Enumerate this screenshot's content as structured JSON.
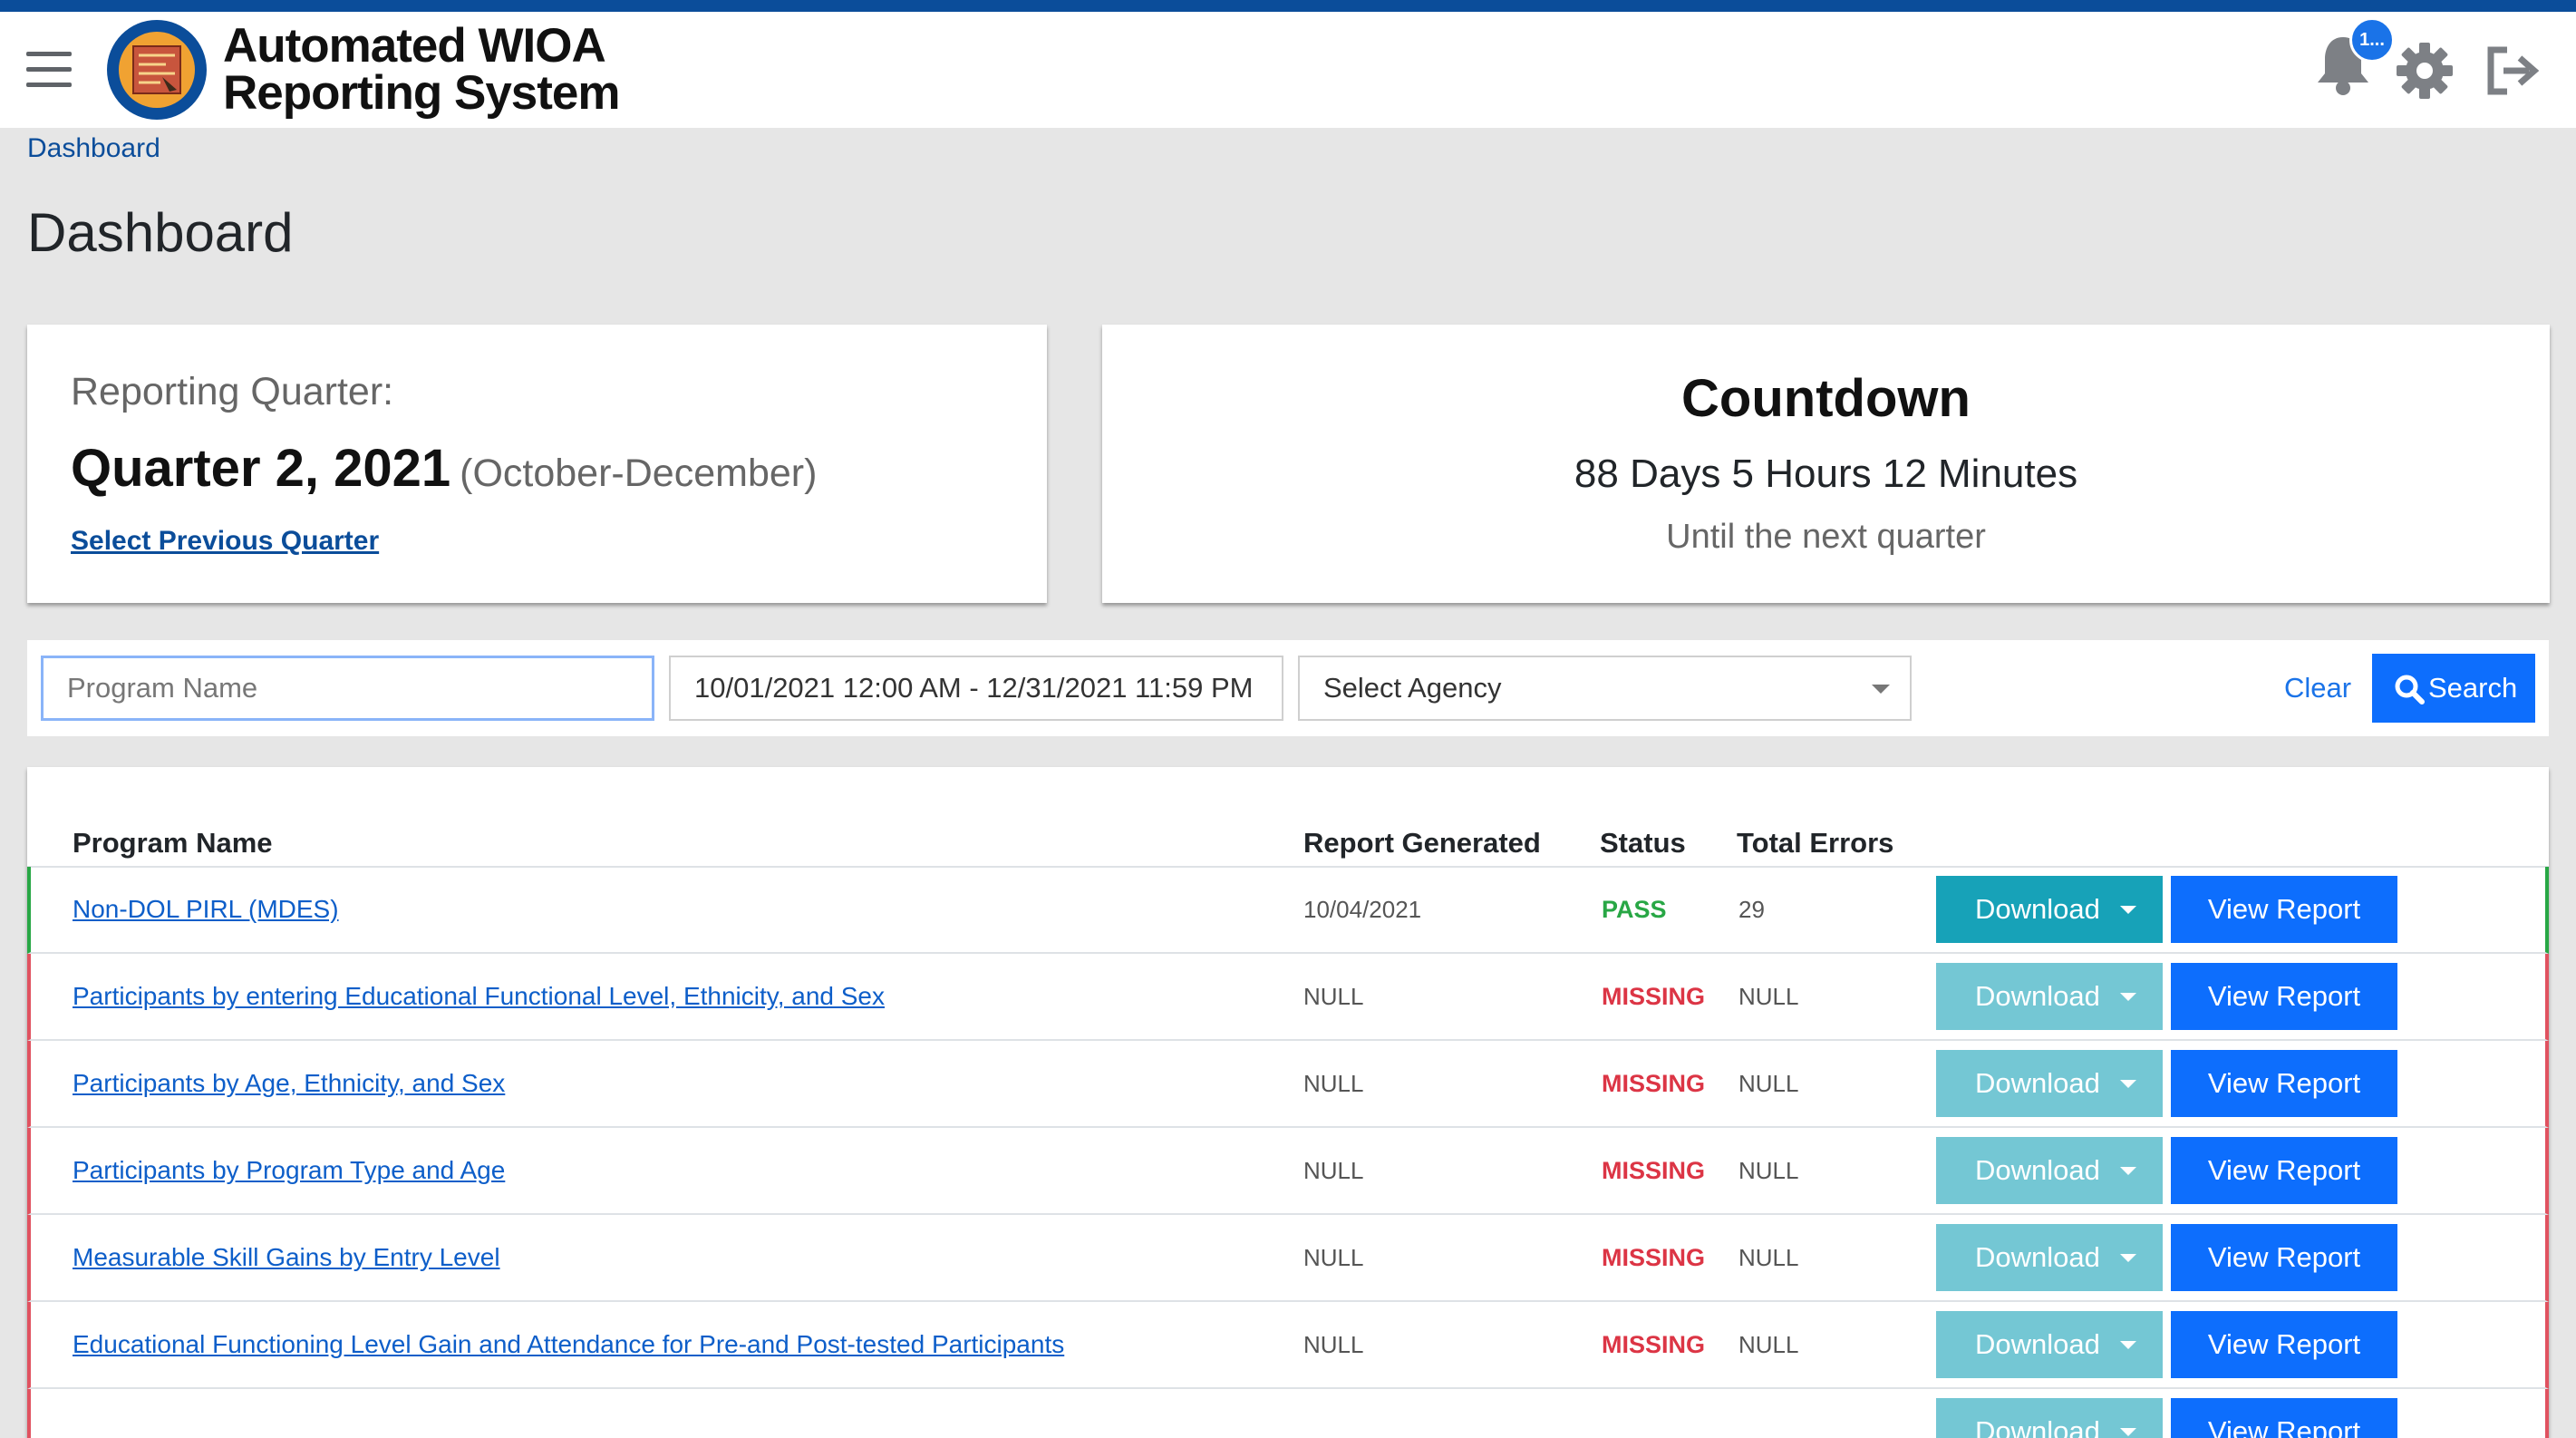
{
  "header": {
    "app_title_line1": "Automated WIOA",
    "app_title_line2": "Reporting System",
    "notification_count": "1..."
  },
  "breadcrumb": "Dashboard",
  "page_title": "Dashboard",
  "reporting_quarter": {
    "label": "Reporting Quarter:",
    "value": "Quarter 2, 2021",
    "months": "(October-December)",
    "link": "Select Previous Quarter"
  },
  "countdown": {
    "title": "Countdown",
    "time": "88 Days 5 Hours 12 Minutes",
    "subtitle": "Until the next quarter"
  },
  "filters": {
    "program_placeholder": "Program Name",
    "date_range": "10/01/2021 12:00 AM - 12/31/2021 11:59 PM",
    "agency_placeholder": "Select Agency",
    "clear_label": "Clear",
    "search_label": "Search"
  },
  "table": {
    "headers": {
      "program": "Program Name",
      "generated": "Report Generated",
      "status": "Status",
      "errors": "Total Errors"
    },
    "download_label": "Download",
    "view_label": "View Report",
    "rows": [
      {
        "program": "Non-DOL PIRL (MDES)",
        "generated": "10/04/2021",
        "status": "PASS",
        "errors": "29"
      },
      {
        "program": "Participants by entering Educational Functional Level, Ethnicity, and Sex",
        "generated": "NULL",
        "status": "MISSING",
        "errors": "NULL"
      },
      {
        "program": "Participants by Age, Ethnicity, and Sex",
        "generated": "NULL",
        "status": "MISSING",
        "errors": "NULL"
      },
      {
        "program": "Participants by Program Type and Age",
        "generated": "NULL",
        "status": "MISSING",
        "errors": "NULL"
      },
      {
        "program": "Measurable Skill Gains by Entry Level",
        "generated": "NULL",
        "status": "MISSING",
        "errors": "NULL"
      },
      {
        "program": "Educational Functioning Level Gain and Attendance for Pre-and Post-tested Participants",
        "generated": "NULL",
        "status": "MISSING",
        "errors": "NULL"
      },
      {
        "program": "",
        "generated": "",
        "status": "",
        "errors": ""
      }
    ]
  },
  "colors": {
    "brand_blue": "#0b4d9a",
    "primary": "#0d6efd",
    "download_active": "#17a2b8",
    "download_disabled": "#74c7d4",
    "pass": "#28a745",
    "missing": "#dc3545"
  },
  "icons": [
    "menu-icon",
    "agency-seal-logo",
    "bell-icon",
    "gear-icon",
    "logout-icon",
    "search-icon",
    "chevron-down-icon"
  ]
}
